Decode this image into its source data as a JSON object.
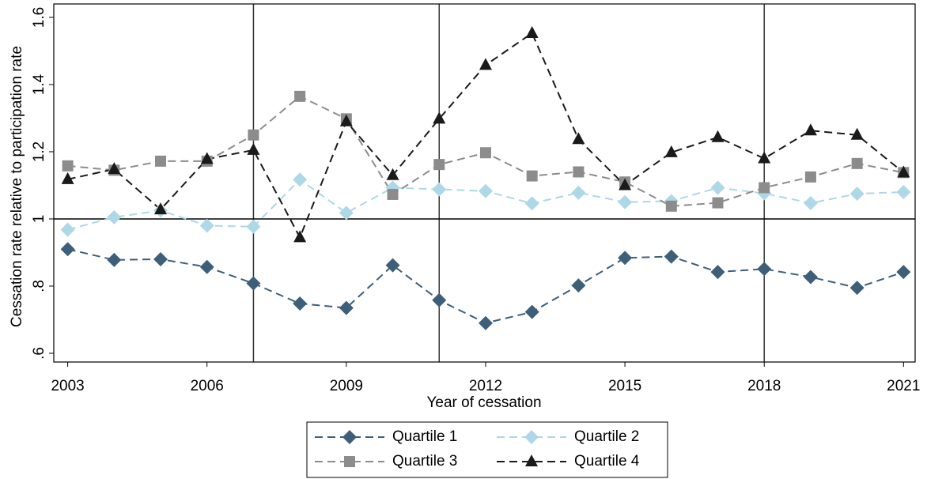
{
  "chart_data": {
    "type": "line",
    "x_label": "Year of cessation",
    "y_label": "Cessation rate relative to participation rate",
    "x": [
      2003,
      2004,
      2005,
      2006,
      2007,
      2008,
      2009,
      2010,
      2011,
      2012,
      2013,
      2014,
      2015,
      2016,
      2017,
      2018,
      2019,
      2020,
      2021
    ],
    "series": [
      {
        "name": "Quartile 1",
        "color": "#3d5f7a",
        "marker": "diamond",
        "values": [
          0.91,
          0.878,
          0.88,
          0.857,
          0.808,
          0.748,
          0.735,
          0.862,
          0.758,
          0.69,
          0.723,
          0.802,
          0.884,
          0.888,
          0.842,
          0.851,
          0.827,
          0.795,
          0.842
        ]
      },
      {
        "name": "Quartile 2",
        "color": "#aed8e8",
        "marker": "diamond",
        "values": [
          0.968,
          1.005,
          1.025,
          0.98,
          0.977,
          1.117,
          1.018,
          1.093,
          1.088,
          1.083,
          1.046,
          1.078,
          1.05,
          1.053,
          1.093,
          1.076,
          1.047,
          1.075,
          1.08
        ]
      },
      {
        "name": "Quartile 3",
        "color": "#8c8c8c",
        "marker": "square",
        "values": [
          1.158,
          1.145,
          1.172,
          1.172,
          1.25,
          1.365,
          1.298,
          1.073,
          1.162,
          1.197,
          1.128,
          1.14,
          1.11,
          1.038,
          1.048,
          1.093,
          1.125,
          1.165,
          1.138
        ]
      },
      {
        "name": "Quartile 4",
        "color": "#1a1a1a",
        "marker": "triangle",
        "values": [
          1.118,
          1.148,
          1.028,
          1.178,
          1.205,
          0.945,
          1.29,
          1.13,
          1.298,
          1.458,
          1.553,
          1.237,
          1.1,
          1.198,
          1.243,
          1.18,
          1.263,
          1.25,
          1.138
        ]
      }
    ],
    "xlim": [
      2002.7,
      2021.25
    ],
    "xticks": [
      2003,
      2006,
      2009,
      2012,
      2015,
      2018,
      2021
    ],
    "ylim": [
      0.574,
      1.64
    ],
    "yticks": [
      {
        "value": 0.6,
        "label": ".6"
      },
      {
        "value": 0.8,
        "label": ".8"
      },
      1,
      {
        "value": 1.2,
        "label": "1.2"
      },
      {
        "value": 1.4,
        "label": "1.4"
      },
      {
        "value": 1.6,
        "label": "1.6"
      }
    ],
    "xlines": [
      2007,
      2011,
      2018
    ],
    "yline": 1,
    "dashed": true,
    "legend": "bottom"
  }
}
